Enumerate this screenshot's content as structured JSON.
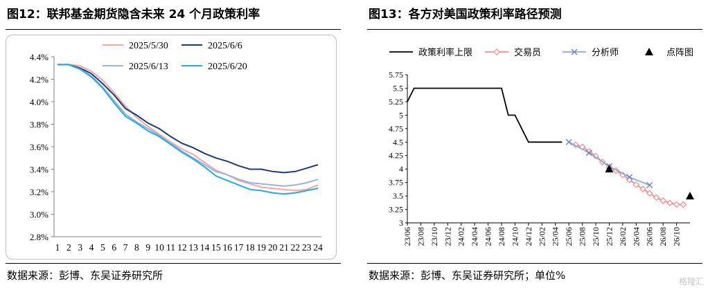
{
  "left": {
    "title": "图12：联邦基金期货隐含未来 24 个月政策利率",
    "source": "数据来源：彭博、东吴证券研究所",
    "chart_data": {
      "type": "line",
      "x": [
        1,
        2,
        3,
        4,
        5,
        6,
        7,
        8,
        9,
        10,
        11,
        12,
        13,
        14,
        15,
        16,
        17,
        18,
        19,
        20,
        21,
        22,
        23,
        24
      ],
      "x_tick_labels": [
        "1",
        "2",
        "3",
        "4",
        "5",
        "6",
        "7",
        "8",
        "9",
        "10",
        "11",
        "12",
        "13",
        "14",
        "15",
        "16",
        "17",
        "18",
        "19",
        "20",
        "21",
        "22",
        "23",
        "24"
      ],
      "y_tick_labels": [
        "2.8%",
        "3.0%",
        "3.2%",
        "3.4%",
        "3.6%",
        "3.8%",
        "4.0%",
        "4.2%",
        "4.4%"
      ],
      "ylim": [
        2.8,
        4.4
      ],
      "ylabel_unit": "%",
      "series": [
        {
          "name": "2025/5/30",
          "color": "#f4a6a6",
          "values": [
            4.33,
            4.33,
            4.32,
            4.27,
            4.19,
            4.08,
            3.96,
            3.86,
            3.78,
            3.71,
            3.64,
            3.58,
            3.53,
            3.46,
            3.39,
            3.35,
            3.3,
            3.27,
            3.24,
            3.23,
            3.22,
            3.21,
            3.22,
            3.26
          ]
        },
        {
          "name": "2025/6/6",
          "color": "#1f3b73",
          "values": [
            4.33,
            4.33,
            4.3,
            4.25,
            4.16,
            4.06,
            3.94,
            3.88,
            3.81,
            3.76,
            3.69,
            3.63,
            3.59,
            3.54,
            3.5,
            3.47,
            3.43,
            3.4,
            3.4,
            3.38,
            3.37,
            3.38,
            3.41,
            3.44
          ]
        },
        {
          "name": "2025/6/13",
          "color": "#98b4dc",
          "values": [
            4.33,
            4.33,
            4.29,
            4.23,
            4.13,
            4.01,
            3.89,
            3.82,
            3.76,
            3.7,
            3.63,
            3.56,
            3.5,
            3.44,
            3.38,
            3.35,
            3.31,
            3.28,
            3.27,
            3.26,
            3.25,
            3.26,
            3.28,
            3.31
          ]
        },
        {
          "name": "2025/6/20",
          "color": "#27a9df",
          "values": [
            4.33,
            4.33,
            4.29,
            4.22,
            4.12,
            3.99,
            3.87,
            3.81,
            3.74,
            3.69,
            3.62,
            3.55,
            3.49,
            3.42,
            3.34,
            3.3,
            3.26,
            3.22,
            3.21,
            3.19,
            3.18,
            3.19,
            3.21,
            3.23
          ]
        }
      ],
      "legend": "top-center, two rows",
      "grid": false
    }
  },
  "right": {
    "title": "图13：各方对美国政策利率路径预测",
    "source": "数据来源：彭博、东吴证券研究所；单位%",
    "chart_data": {
      "type": "line",
      "x_categories": [
        "23/06",
        "23/08",
        "23/10",
        "23/12",
        "24/02",
        "24/04",
        "24/06",
        "24/08",
        "24/10",
        "24/12",
        "25/02",
        "25/04",
        "25/06",
        "25/08",
        "25/10",
        "25/12",
        "26/02",
        "26/04",
        "26/06",
        "26/08",
        "26/10"
      ],
      "x_range_months_from_2023_06": [
        0,
        42
      ],
      "y_tick_labels": [
        "3",
        "3.25",
        "3.5",
        "3.75",
        "4",
        "4.25",
        "4.5",
        "4.75",
        "5",
        "5.25",
        "5.5",
        "5.75"
      ],
      "ylim": [
        3,
        5.75
      ],
      "grid": false,
      "legend": "top, one row",
      "series": [
        {
          "name": "政策利率上限",
          "color": "#000000",
          "marker": "none",
          "points": [
            [
              "23/06",
              5.25
            ],
            [
              "23/07",
              5.5
            ],
            [
              "24/08",
              5.5
            ],
            [
              "24/09",
              5.0
            ],
            [
              "24/10",
              5.0
            ],
            [
              "24/11",
              4.75
            ],
            [
              "24/12",
              4.5
            ],
            [
              "25/05",
              4.5
            ]
          ]
        },
        {
          "name": "交易员",
          "color": "#f28b8b",
          "marker": "diamond",
          "points": [
            [
              "25/07",
              4.45
            ],
            [
              "25/08",
              4.41
            ],
            [
              "25/09",
              4.33
            ],
            [
              "25/10",
              4.24
            ],
            [
              "25/11",
              4.13
            ],
            [
              "25/12",
              4.04
            ],
            [
              "26/01",
              3.97
            ],
            [
              "26/02",
              3.89
            ],
            [
              "26/03",
              3.8
            ],
            [
              "26/04",
              3.71
            ],
            [
              "26/05",
              3.63
            ],
            [
              "26/06",
              3.55
            ],
            [
              "26/07",
              3.47
            ],
            [
              "26/08",
              3.41
            ],
            [
              "26/09",
              3.37
            ],
            [
              "26/10",
              3.34
            ],
            [
              "26/11",
              3.34
            ]
          ]
        },
        {
          "name": "分析师",
          "color": "#8fa8d8",
          "marker": "x",
          "points": [
            [
              "25/06",
              4.5
            ],
            [
              "25/09",
              4.3
            ],
            [
              "25/12",
              4.05
            ],
            [
              "26/03",
              3.85
            ],
            [
              "26/06",
              3.7
            ]
          ]
        },
        {
          "name": "点阵图",
          "color": "#000000",
          "marker": "triangle",
          "points": [
            [
              "25/12",
              4.0
            ],
            [
              "26/12",
              3.5
            ]
          ]
        }
      ]
    }
  },
  "watermark": "格隆汇"
}
